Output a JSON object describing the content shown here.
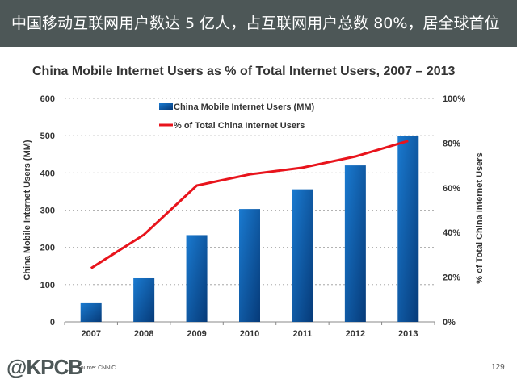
{
  "header": {
    "title": "中国移动互联网用户数达 5 亿人，占互联网用户总数 80%，居全球首位"
  },
  "footer": {
    "logo": "@KPCB",
    "source": "Source: CNNIC.",
    "page": "129"
  },
  "colors": {
    "header_bg": "#4d5757",
    "bar": "#0b63b5",
    "line": "#e8141c"
  },
  "chart_data": {
    "type": "bar+line",
    "title": "China Mobile Internet Users as % of Total Internet Users, 2007 – 2013",
    "categories": [
      "2007",
      "2008",
      "2009",
      "2010",
      "2011",
      "2012",
      "2013"
    ],
    "series": [
      {
        "name": "China Mobile Internet Users (MM)",
        "type": "bar",
        "axis": "left",
        "values": [
          50,
          117,
          233,
          303,
          356,
          420,
          500
        ]
      },
      {
        "name": "% of Total China Internet Users",
        "type": "line",
        "axis": "right",
        "values": [
          24,
          39,
          61,
          66,
          69,
          74,
          81
        ]
      }
    ],
    "ylabel": "China Mobile Internet Users (MM)",
    "y2label": "% of Total China Internet Users",
    "ylim": [
      0,
      600
    ],
    "yticks": [
      "0",
      "100",
      "200",
      "300",
      "400",
      "500",
      "600"
    ],
    "y2lim": [
      0,
      100
    ],
    "y2ticks": [
      "0%",
      "20%",
      "40%",
      "60%",
      "80%",
      "100%"
    ],
    "grid": true,
    "legend": "top-center"
  }
}
